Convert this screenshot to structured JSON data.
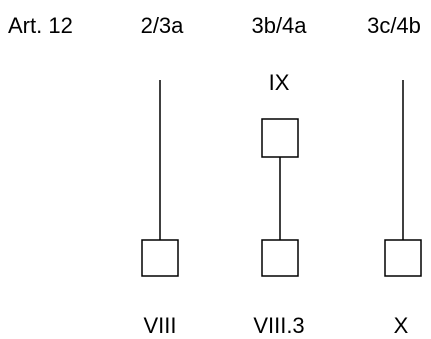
{
  "header": {
    "article": "Art. 12",
    "columns": [
      "2/3a",
      "3b/4a",
      "3c/4b"
    ]
  },
  "top_labels": {
    "column_2": "IX"
  },
  "bottom_labels": [
    "VIII",
    "VIII.3",
    "X"
  ],
  "colors": {
    "line": "#000000",
    "box_fill": "#ffffff"
  }
}
